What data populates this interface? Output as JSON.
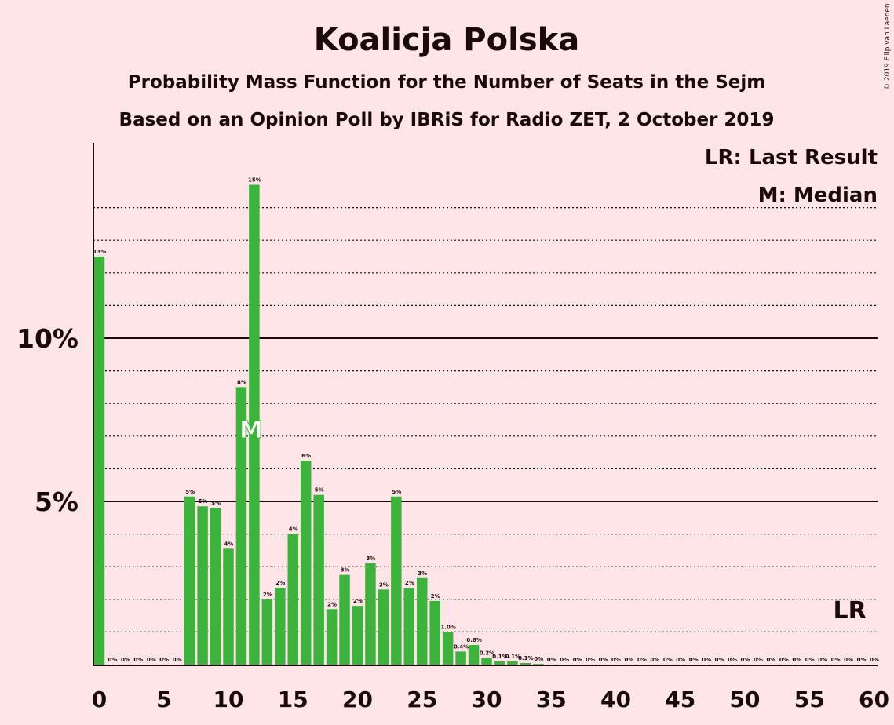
{
  "chart_data": {
    "type": "bar",
    "title": "Koalicja Polska",
    "subtitle": "Probability Mass Function for the Number of Seats in the Sejm",
    "subtitle2": "Based on an Opinion Poll by IBRiS for Radio ZET, 2 October 2019",
    "copyright": "© 2019 Filip van Laenen",
    "legend": {
      "last_result": "LR: Last Result",
      "median": "M: Median",
      "placement": "top-right"
    },
    "median_marker": {
      "label": "M",
      "seat": 12
    },
    "last_result_marker": {
      "label": "LR",
      "seat": 58
    },
    "xlim": [
      0,
      60
    ],
    "ylim": [
      0,
      16
    ],
    "x_ticks": [
      0,
      5,
      10,
      15,
      20,
      25,
      30,
      35,
      40,
      45,
      50,
      55,
      60
    ],
    "x_tick_labels": [
      "0",
      "5",
      "10",
      "15",
      "20",
      "25",
      "30",
      "35",
      "40",
      "45",
      "50",
      "55",
      "60"
    ],
    "y_major_ticks": [
      5,
      10
    ],
    "y_major_labels": [
      "5%",
      "10%"
    ],
    "y_minor_gridlines": [
      1,
      2,
      3,
      4,
      6,
      7,
      8,
      9,
      11,
      12,
      13,
      14
    ],
    "bar_color": "#3DB33D",
    "seats": [
      0,
      1,
      2,
      3,
      4,
      5,
      6,
      7,
      8,
      9,
      10,
      11,
      12,
      13,
      14,
      15,
      16,
      17,
      18,
      19,
      20,
      21,
      22,
      23,
      24,
      25,
      26,
      27,
      28,
      29,
      30,
      31,
      32,
      33,
      34,
      35,
      36,
      37,
      38,
      39,
      40,
      41,
      42,
      43,
      44,
      45,
      46,
      47,
      48,
      49,
      50,
      51,
      52,
      53,
      54,
      55,
      56,
      57,
      58,
      59,
      60
    ],
    "values": [
      12.5,
      0,
      0,
      0,
      0,
      0,
      0,
      5.15,
      4.85,
      4.8,
      3.55,
      8.5,
      14.7,
      2.0,
      2.35,
      4.0,
      6.25,
      5.2,
      1.7,
      2.75,
      1.8,
      3.1,
      2.3,
      5.15,
      2.35,
      2.65,
      1.95,
      1.0,
      0.4,
      0.6,
      0.2,
      0.1,
      0.1,
      0.05,
      0.02,
      0,
      0,
      0,
      0,
      0,
      0,
      0,
      0,
      0,
      0,
      0,
      0,
      0,
      0,
      0,
      0,
      0,
      0,
      0,
      0,
      0,
      0,
      0,
      0,
      0,
      0
    ],
    "data_labels": [
      "13%",
      "0%",
      "0%",
      "0%",
      "0%",
      "0%",
      "0%",
      "5%",
      "5%",
      "5%",
      "4%",
      "8%",
      "15%",
      "2%",
      "2%",
      "4%",
      "6%",
      "5%",
      "2%",
      "3%",
      "2%",
      "3%",
      "2%",
      "5%",
      "2%",
      "3%",
      "2%",
      "1.0%",
      "0.4%",
      "0.6%",
      "0.2%",
      "0.1%",
      "0.1%",
      "0.1%",
      "0%",
      "0%",
      "0%",
      "0%",
      "0%",
      "0%",
      "0%",
      "0%",
      "0%",
      "0%",
      "0%",
      "0%",
      "0%",
      "0%",
      "0%",
      "0%",
      "0%",
      "0%",
      "0%",
      "0%",
      "0%",
      "0%",
      "0%",
      "0%",
      "0%",
      "0%",
      "0%"
    ],
    "grid": true
  }
}
